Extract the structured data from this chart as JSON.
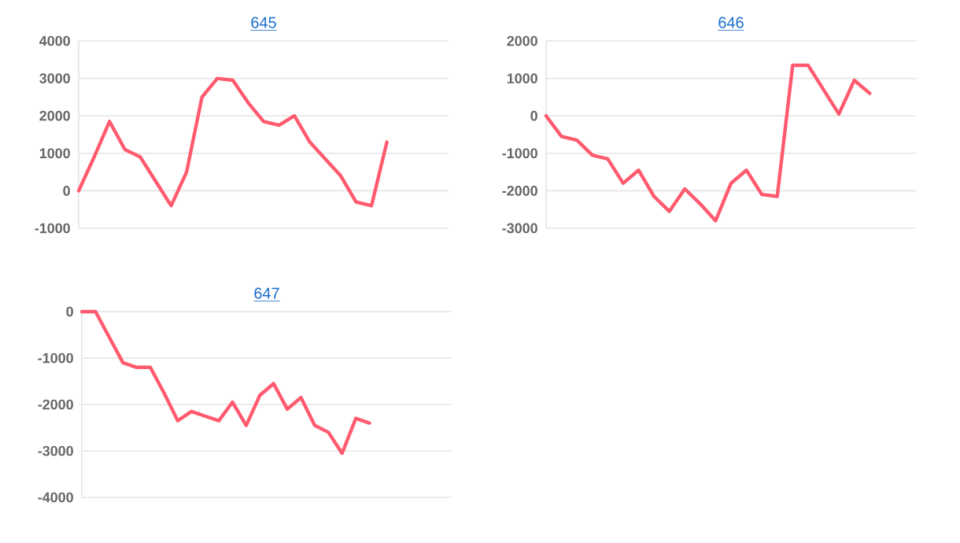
{
  "chart_data": [
    {
      "type": "line",
      "title": "645",
      "color": "#ff5a6e",
      "grid": "y",
      "tick_labels": "y",
      "ylim": [
        -1000,
        4000
      ],
      "yticks": [
        -1000,
        0,
        1000,
        2000,
        3000,
        4000
      ],
      "categories": [
        null,
        null,
        null,
        null,
        null,
        null,
        null,
        null,
        null,
        null,
        null,
        null,
        null,
        null,
        null,
        null,
        null,
        null,
        null,
        null,
        null,
        null,
        null,
        null,
        null
      ],
      "values": [
        0,
        900,
        1850,
        1100,
        900,
        250,
        -400,
        500,
        2500,
        3000,
        2950,
        2350,
        1850,
        1750,
        2000,
        1300,
        850,
        400,
        -300,
        -400,
        1300,
        null,
        null,
        null,
        null
      ]
    },
    {
      "type": "line",
      "title": "646",
      "color": "#ff5a6e",
      "grid": "y",
      "tick_labels": "y",
      "ylim": [
        -3000,
        2000
      ],
      "yticks": [
        -3000,
        -2000,
        -1000,
        0,
        1000,
        2000
      ],
      "categories": [
        null,
        null,
        null,
        null,
        null,
        null,
        null,
        null,
        null,
        null,
        null,
        null,
        null,
        null,
        null,
        null,
        null,
        null,
        null,
        null,
        null,
        null,
        null,
        null,
        null
      ],
      "values": [
        0,
        -550,
        -650,
        -1050,
        -1150,
        -1800,
        -1450,
        -2150,
        -2550,
        -1950,
        -2350,
        -2800,
        -1800,
        -1450,
        -2100,
        -2150,
        1350,
        1350,
        700,
        50,
        950,
        600,
        null,
        null,
        null
      ]
    },
    {
      "type": "line",
      "title": "647",
      "color": "#ff5a6e",
      "grid": "y",
      "tick_labels": "y",
      "ylim": [
        -4000,
        0
      ],
      "yticks": [
        -4000,
        -3000,
        -2000,
        -1000,
        0
      ],
      "categories": [
        null,
        null,
        null,
        null,
        null,
        null,
        null,
        null,
        null,
        null,
        null,
        null,
        null,
        null,
        null,
        null,
        null,
        null,
        null,
        null,
        null,
        null,
        null,
        null,
        null,
        null,
        null,
        null
      ],
      "values": [
        0,
        0,
        -550,
        -1100,
        -1200,
        -1200,
        -1750,
        -2350,
        -2150,
        -2250,
        -2350,
        -1950,
        -2450,
        -1800,
        -1550,
        -2100,
        -1850,
        -2450,
        -2600,
        -3050,
        -2300,
        -2400,
        null,
        null,
        null,
        null,
        null,
        null
      ]
    }
  ]
}
